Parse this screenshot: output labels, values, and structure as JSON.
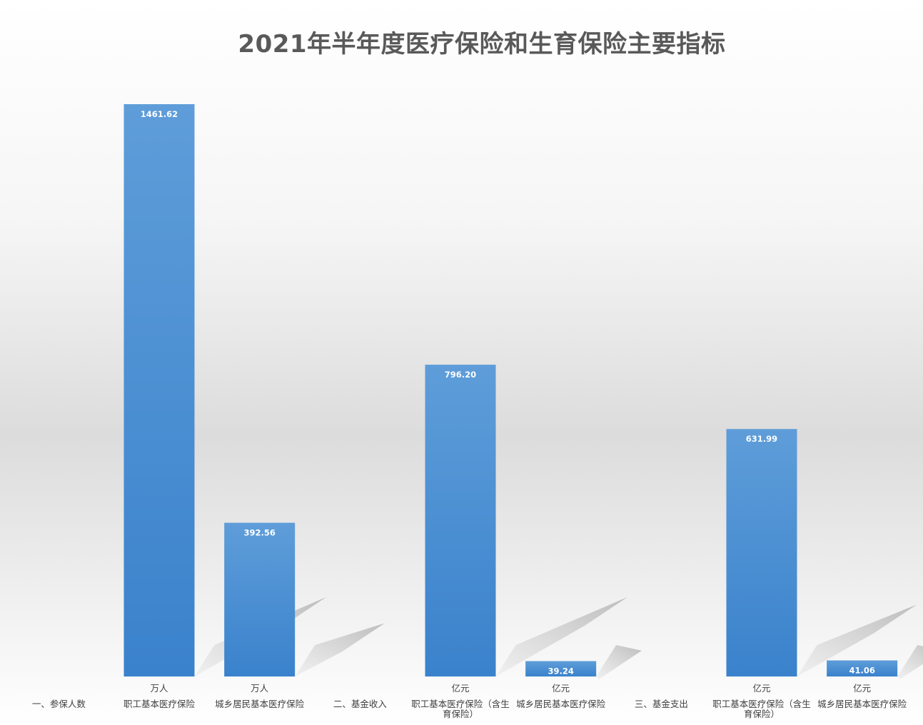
{
  "chart_data": {
    "type": "bar",
    "title": "2021年半年度医疗保险和生育保险主要指标",
    "ylim": [
      0,
      1461.62
    ],
    "grid": false,
    "legend": "none",
    "bar_color": "#4a8fd4",
    "shadow_color": "#b8b8b8",
    "categories": [
      {
        "unit": "",
        "name": [
          "一、参保人数"
        ],
        "value": null
      },
      {
        "unit": "万人",
        "name": [
          "职工基本医疗保险"
        ],
        "value": 1461.62,
        "value_label": "1461.62"
      },
      {
        "unit": "万人",
        "name": [
          "城乡居民基本医疗保险"
        ],
        "value": 392.56,
        "value_label": "392.56"
      },
      {
        "unit": "",
        "name": [
          "二、基金收入"
        ],
        "value": null
      },
      {
        "unit": "亿元",
        "name": [
          "职工基本医疗保险（含生",
          "育保险）"
        ],
        "value": 796.2,
        "value_label": "796.20"
      },
      {
        "unit": "亿元",
        "name": [
          "城乡居民基本医疗保险"
        ],
        "value": 39.24,
        "value_label": "39.24"
      },
      {
        "unit": "",
        "name": [
          "三、基金支出"
        ],
        "value": null
      },
      {
        "unit": "亿元",
        "name": [
          "职工基本医疗保险（含生",
          "育保险）"
        ],
        "value": 631.99,
        "value_label": "631.99"
      },
      {
        "unit": "亿元",
        "name": [
          "城乡居民基本医疗保险"
        ],
        "value": 41.06,
        "value_label": "41.06"
      }
    ]
  }
}
